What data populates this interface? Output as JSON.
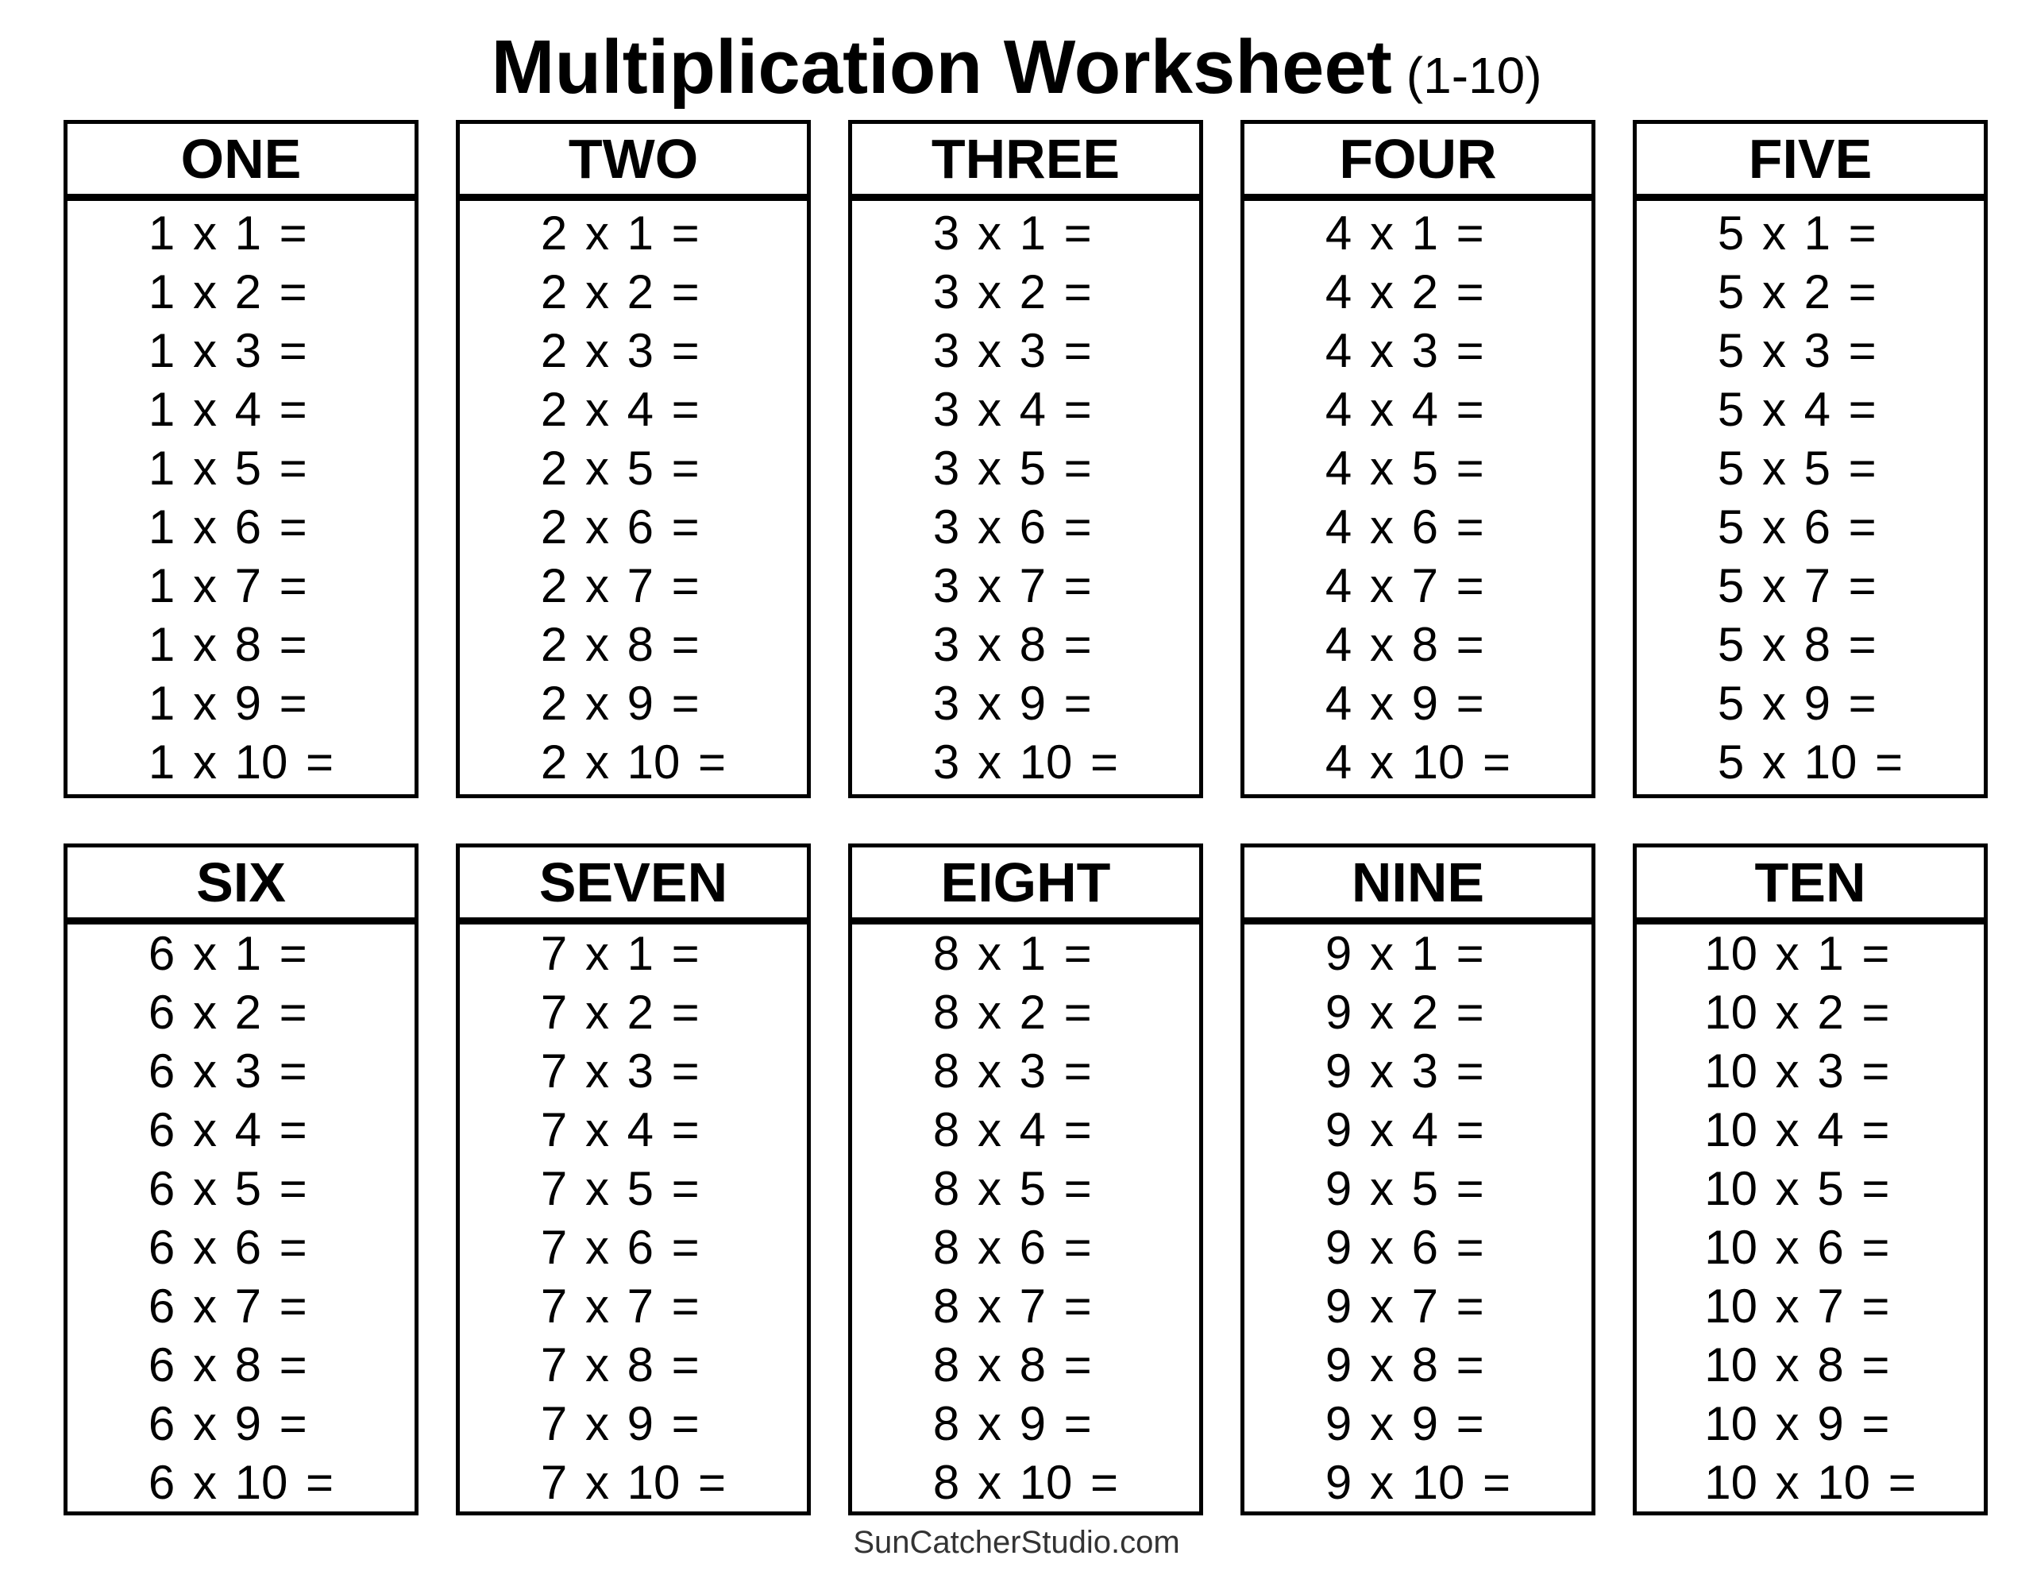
{
  "title": {
    "main": "Multiplication Worksheet",
    "range": "(1-10)"
  },
  "colors": {
    "background": "#ffffff",
    "border": "#000000",
    "text": "#000000",
    "footer_text": "#333333"
  },
  "tables": [
    {
      "label": "ONE",
      "problems": [
        "1 x 1 =",
        "1 x 2 =",
        "1 x 3 =",
        "1 x 4 =",
        "1 x 5 =",
        "1 x 6 =",
        "1 x 7 =",
        "1 x 8 =",
        "1 x 9 =",
        "1 x 10 ="
      ]
    },
    {
      "label": "TWO",
      "problems": [
        "2 x 1 =",
        "2 x 2 =",
        "2 x 3 =",
        "2 x 4 =",
        "2 x 5 =",
        "2 x 6 =",
        "2 x 7 =",
        "2 x 8 =",
        "2 x 9 =",
        "2 x 10 ="
      ]
    },
    {
      "label": "THREE",
      "problems": [
        "3 x 1 =",
        "3 x 2 =",
        "3 x 3 =",
        "3 x 4 =",
        "3 x 5 =",
        "3 x 6 =",
        "3 x 7 =",
        "3 x 8 =",
        "3 x 9 =",
        "3 x 10 ="
      ]
    },
    {
      "label": "FOUR",
      "problems": [
        "4 x 1 =",
        "4 x 2 =",
        "4 x 3 =",
        "4 x 4 =",
        "4 x 5 =",
        "4 x 6 =",
        "4 x 7 =",
        "4 x 8 =",
        "4 x 9 =",
        "4 x 10 ="
      ]
    },
    {
      "label": "FIVE",
      "problems": [
        "5 x 1 =",
        "5 x 2 =",
        "5 x 3 =",
        "5 x 4 =",
        "5 x 5 =",
        "5 x 6 =",
        "5 x 7 =",
        "5 x 8 =",
        "5 x 9 =",
        "5 x 10 ="
      ]
    },
    {
      "label": "SIX",
      "problems": [
        "6 x 1 =",
        "6 x 2 =",
        "6 x 3 =",
        "6 x 4 =",
        "6 x 5 =",
        "6 x 6 =",
        "6 x 7 =",
        "6 x 8 =",
        "6 x 9 =",
        "6 x 10 ="
      ]
    },
    {
      "label": "SEVEN",
      "problems": [
        "7 x 1 =",
        "7 x 2 =",
        "7 x 3 =",
        "7 x 4 =",
        "7 x 5 =",
        "7 x 6 =",
        "7 x 7 =",
        "7 x 8 =",
        "7 x 9 =",
        "7 x 10 ="
      ]
    },
    {
      "label": "EIGHT",
      "problems": [
        "8 x 1 =",
        "8 x 2 =",
        "8 x 3 =",
        "8 x 4 =",
        "8 x 5 =",
        "8 x 6 =",
        "8 x 7 =",
        "8 x 8 =",
        "8 x 9 =",
        "8 x 10 ="
      ]
    },
    {
      "label": "NINE",
      "problems": [
        "9 x 1 =",
        "9 x 2 =",
        "9 x 3 =",
        "9 x 4 =",
        "9 x 5 =",
        "9 x 6 =",
        "9 x 7 =",
        "9 x 8 =",
        "9 x 9 =",
        "9 x 10 ="
      ]
    },
    {
      "label": "TEN",
      "problems": [
        "10 x 1 =",
        "10 x 2 =",
        "10 x 3 =",
        "10 x 4 =",
        "10 x 5 =",
        "10 x 6 =",
        "10 x 7 =",
        "10 x 8 =",
        "10 x 9 =",
        "10 x 10 ="
      ]
    }
  ],
  "footer": {
    "site": "SunCatcherStudio.com"
  }
}
